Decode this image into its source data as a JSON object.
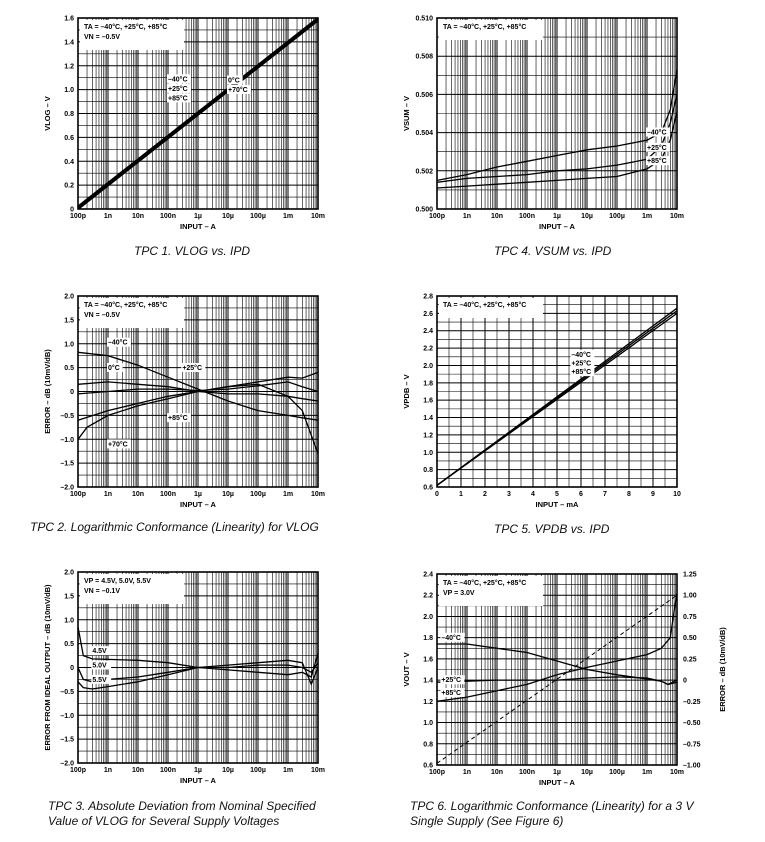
{
  "chart_data": [
    {
      "id": "tpc1",
      "type": "line",
      "caption": "TPC 1.  VLOG vs. IPD",
      "ylabel": "VLOG – V",
      "xlabel": "INPUT – A",
      "xscale": "log",
      "xlim": [
        1e-10,
        0.01
      ],
      "ylim": [
        0,
        1.6
      ],
      "xticks": [
        "100p",
        "1n",
        "10n",
        "100n",
        "1µ",
        "10µ",
        "100µ",
        "1m",
        "10m"
      ],
      "yticks": [
        "0",
        "0.2",
        "0.4",
        "0.6",
        "0.8",
        "1.0",
        "1.2",
        "1.4",
        "1.6"
      ],
      "legend": [
        "TA = –40°C, +25°C, +85°C",
        "VN = –0.5V"
      ],
      "annotations": [
        {
          "text": "–40°C",
          "x": 1e-07,
          "y": 1.07
        },
        {
          "text": "+25°C",
          "x": 1e-07,
          "y": 0.99
        },
        {
          "text": "+85°C",
          "x": 1e-07,
          "y": 0.91
        },
        {
          "text": "0°C",
          "x": 1e-05,
          "y": 1.06
        },
        {
          "text": "+70°C",
          "x": 1e-05,
          "y": 0.98
        }
      ],
      "series": [
        {
          "x": [
            1e-10,
            0.01
          ],
          "y": [
            0.0,
            1.58
          ]
        },
        {
          "x": [
            1e-10,
            0.01
          ],
          "y": [
            0.01,
            1.59
          ]
        },
        {
          "x": [
            1e-10,
            0.01
          ],
          "y": [
            0.02,
            1.6
          ]
        }
      ]
    },
    {
      "id": "tpc2",
      "type": "line",
      "caption": "TPC 2.  Logarithmic Conformance (Linearity) for VLOG",
      "ylabel": "ERROR – dB (10mV/dB)",
      "xlabel": "INPUT – A",
      "xscale": "log",
      "xlim": [
        1e-10,
        0.01
      ],
      "ylim": [
        -2.0,
        2.0
      ],
      "xticks": [
        "100p",
        "1n",
        "10n",
        "100n",
        "1µ",
        "10µ",
        "100µ",
        "1m",
        "10m"
      ],
      "yticks": [
        "–2.0",
        "–1.5",
        "–1.0",
        "–0.5",
        "0",
        "0.5",
        "1.0",
        "1.5",
        "2.0"
      ],
      "legend": [
        "TA = –40°C, +25°C, +85°C",
        "VN = –0.5V"
      ],
      "annotations": [
        {
          "text": "–40°C",
          "x": 1e-09,
          "y": 0.98
        },
        {
          "text": "0°C",
          "x": 1e-09,
          "y": 0.45
        },
        {
          "text": "+25°C",
          "x": 3e-07,
          "y": 0.45
        },
        {
          "text": "+85°C",
          "x": 1e-07,
          "y": -0.6
        },
        {
          "text": "+70°C",
          "x": 1e-09,
          "y": -1.15
        }
      ],
      "series": [
        {
          "x": [
            1e-10,
            1e-09,
            1e-08,
            1e-07,
            1e-06,
            1e-05,
            0.0001,
            0.001,
            0.003,
            0.01
          ],
          "y": [
            0.82,
            0.75,
            0.55,
            0.3,
            0.05,
            -0.2,
            -0.4,
            -0.5,
            -0.55,
            -0.6
          ]
        },
        {
          "x": [
            1e-10,
            1e-09,
            1e-08,
            1e-07,
            1e-06,
            1e-05,
            0.0001,
            0.001,
            0.003,
            0.01
          ],
          "y": [
            0.15,
            0.2,
            0.15,
            0.1,
            0.0,
            -0.05,
            -0.05,
            -0.1,
            -0.15,
            -0.2
          ]
        },
        {
          "x": [
            1e-10,
            1e-09,
            1e-08,
            1e-07,
            1e-06,
            1e-05,
            0.0001,
            0.001,
            0.003,
            0.01
          ],
          "y": [
            -0.05,
            0.0,
            0.05,
            0.05,
            0.02,
            0.05,
            0.12,
            0.2,
            0.1,
            0.0
          ]
        },
        {
          "x": [
            1e-10,
            1e-09,
            1e-08,
            1e-07,
            1e-06,
            1e-05,
            0.0001,
            0.001,
            0.003,
            0.01
          ],
          "y": [
            -0.6,
            -0.4,
            -0.25,
            -0.1,
            0.0,
            0.1,
            0.2,
            0.3,
            0.28,
            0.4
          ]
        },
        {
          "x": [
            1e-10,
            2e-10,
            1e-09,
            1e-08,
            1e-07,
            1e-06,
            1e-05,
            0.0001,
            0.001,
            0.003,
            0.01
          ],
          "y": [
            -1.0,
            -0.75,
            -0.5,
            -0.3,
            -0.15,
            0.0,
            0.1,
            0.15,
            -0.1,
            -0.4,
            -1.3
          ]
        }
      ]
    },
    {
      "id": "tpc3",
      "type": "line",
      "caption": "TPC 3.  Absolute Deviation from Nominal Specified Value of VLOG for Several Supply Voltages",
      "ylabel": "ERROR FROM IDEAL OUTPUT – dB (10mV/dB)",
      "xlabel": "INPUT – A",
      "xscale": "log",
      "xlim": [
        1e-10,
        0.01
      ],
      "ylim": [
        -2.0,
        2.0
      ],
      "xticks": [
        "100p",
        "1n",
        "10n",
        "100n",
        "1µ",
        "10µ",
        "100µ",
        "1m",
        "10m"
      ],
      "yticks": [
        "–2.0",
        "–1.5",
        "–1.0",
        "–0.5",
        "0",
        "0.5",
        "1.0",
        "1.5",
        "2.0"
      ],
      "legend": [
        "VP = 4.5V, 5.0V, 5.5V",
        "VN = –0.1V"
      ],
      "annotations": [
        {
          "text": "4.5V",
          "x": 3e-10,
          "y": 0.3
        },
        {
          "text": "5.0V",
          "x": 3e-10,
          "y": 0.0
        },
        {
          "text": "5.5V",
          "x": 3e-10,
          "y": -0.3
        }
      ],
      "series": [
        {
          "x": [
            1e-10,
            1.5e-10,
            3e-10,
            1e-09,
            1e-08,
            1e-07,
            1e-06,
            1e-05,
            0.0001,
            0.001,
            0.003,
            0.006,
            0.01
          ],
          "y": [
            0.85,
            0.25,
            0.18,
            0.17,
            0.15,
            0.1,
            0.0,
            -0.05,
            -0.1,
            -0.15,
            -0.1,
            -0.2,
            0.3
          ]
        },
        {
          "x": [
            1e-10,
            1.5e-10,
            3e-10,
            1e-09,
            1e-08,
            1e-07,
            1e-06,
            1e-05,
            0.0001,
            0.001,
            0.003,
            0.006,
            0.01
          ],
          "y": [
            0.0,
            -0.25,
            -0.3,
            -0.25,
            -0.2,
            -0.1,
            0.0,
            0.0,
            0.05,
            0.05,
            0.0,
            -0.1,
            0.1
          ]
        },
        {
          "x": [
            1e-10,
            1.5e-10,
            3e-10,
            1e-09,
            1e-08,
            1e-07,
            1e-06,
            1e-05,
            0.0001,
            0.001,
            0.003,
            0.006,
            0.01
          ],
          "y": [
            -0.3,
            -0.42,
            -0.45,
            -0.4,
            -0.3,
            -0.15,
            0.0,
            0.05,
            0.1,
            0.15,
            0.1,
            -0.35,
            0.0
          ]
        }
      ]
    },
    {
      "id": "tpc4",
      "type": "line",
      "caption": "TPC 4.  VSUM vs. IPD",
      "ylabel": "VSUM – V",
      "xlabel": "INPUT – A",
      "xscale": "log",
      "xlim": [
        1e-10,
        0.01
      ],
      "ylim": [
        0.5,
        0.51
      ],
      "xticks": [
        "100p",
        "1n",
        "10n",
        "100n",
        "1µ",
        "10µ",
        "100µ",
        "1m",
        "10m"
      ],
      "yticks": [
        "0.500",
        "0.502",
        "0.504",
        "0.506",
        "0.508",
        "0.510"
      ],
      "legend": [
        "TA = –40°C, +25°C, +85°C"
      ],
      "annotations": [
        {
          "text": "–40°C",
          "x": 0.001,
          "y": 0.5039
        },
        {
          "text": "+25°C",
          "x": 0.001,
          "y": 0.5031
        },
        {
          "text": "+85°C",
          "x": 0.001,
          "y": 0.5024
        }
      ],
      "series": [
        {
          "x": [
            1e-10,
            1e-09,
            1e-08,
            1e-07,
            1e-06,
            1e-05,
            0.0001,
            0.001,
            0.003,
            0.006,
            0.01
          ],
          "y": [
            0.5015,
            0.5018,
            0.5022,
            0.5025,
            0.5028,
            0.5031,
            0.5033,
            0.5036,
            0.504,
            0.5052,
            0.5073
          ]
        },
        {
          "x": [
            1e-10,
            1e-09,
            1e-08,
            1e-07,
            1e-06,
            1e-05,
            0.0001,
            0.001,
            0.003,
            0.006,
            0.01
          ],
          "y": [
            0.5014,
            0.5016,
            0.5017,
            0.5018,
            0.502,
            0.5021,
            0.5023,
            0.5026,
            0.5033,
            0.5045,
            0.506
          ]
        },
        {
          "x": [
            1e-10,
            1e-09,
            1e-08,
            1e-07,
            1e-06,
            1e-05,
            0.0001,
            0.001,
            0.003,
            0.006,
            0.01
          ],
          "y": [
            0.5011,
            0.5012,
            0.5013,
            0.5014,
            0.5015,
            0.5016,
            0.5017,
            0.5021,
            0.5026,
            0.5036,
            0.5051
          ]
        }
      ]
    },
    {
      "id": "tpc5",
      "type": "line",
      "caption": "TPC 5.  VPDB vs. IPD",
      "ylabel": "VPDB – V",
      "xlabel": "INPUT – mA",
      "xscale": "linear",
      "xlim": [
        0,
        10
      ],
      "ylim": [
        0.6,
        2.8
      ],
      "xticks": [
        "0",
        "1",
        "2",
        "3",
        "4",
        "5",
        "6",
        "7",
        "8",
        "9",
        "10"
      ],
      "yticks": [
        "0.6",
        "0.8",
        "1.0",
        "1.2",
        "1.4",
        "1.6",
        "1.8",
        "2.0",
        "2.2",
        "2.4",
        "2.6",
        "2.8"
      ],
      "legend": [
        "TA = –40°C, +25°C, +85°C"
      ],
      "annotations": [
        {
          "text": "–40°C",
          "x": 5.6,
          "y": 2.1
        },
        {
          "text": "+25°C",
          "x": 5.6,
          "y": 2.0
        },
        {
          "text": "+85°C",
          "x": 5.6,
          "y": 1.9
        }
      ],
      "series": [
        {
          "x": [
            0,
            10
          ],
          "y": [
            0.62,
            2.66
          ]
        },
        {
          "x": [
            0,
            10
          ],
          "y": [
            0.62,
            2.63
          ]
        },
        {
          "x": [
            0,
            10
          ],
          "y": [
            0.62,
            2.6
          ]
        }
      ]
    },
    {
      "id": "tpc6",
      "type": "line",
      "caption": "TPC 6.  Logarithmic Conformance (Linearity) for a 3 V Single Supply (See Figure 6)",
      "ylabel": "VOUT – V",
      "y2label": "ERROR – dB (10mV/dB)",
      "xlabel": "INPUT – A",
      "xscale": "log",
      "xlim": [
        1e-10,
        0.01
      ],
      "ylim": [
        0.6,
        2.4
      ],
      "y2lim": [
        -1.0,
        1.25
      ],
      "xticks": [
        "100p",
        "1n",
        "10n",
        "100n",
        "1µ",
        "10µ",
        "100µ",
        "1m",
        "10m"
      ],
      "yticks": [
        "0.6",
        "0.8",
        "1.0",
        "1.2",
        "1.4",
        "1.6",
        "1.8",
        "2.0",
        "2.2",
        "2.4"
      ],
      "y2ticks": [
        "–1.00",
        "–0.75",
        "–0.50",
        "–0.25",
        "0",
        "0.25",
        "0.50",
        "0.75",
        "1.00",
        "1.25"
      ],
      "legend": [
        "TA = –40°C, +25°C, +85°C",
        "VP = 3.0V"
      ],
      "annotations": [
        {
          "text": "–40°C",
          "x": 1.4e-10,
          "y": 1.78
        },
        {
          "text": "+25°C",
          "x": 1.4e-10,
          "y": 1.38
        },
        {
          "text": "+85°C",
          "x": 1.4e-10,
          "y": 1.26
        }
      ],
      "series": [
        {
          "x": [
            1e-10,
            1e-09,
            1e-08,
            1e-07,
            1e-06,
            1e-05,
            0.0001,
            0.001,
            0.003,
            0.005,
            0.01
          ],
          "y": [
            1.74,
            1.74,
            1.7,
            1.66,
            1.58,
            1.5,
            1.45,
            1.41,
            1.39,
            1.36,
            1.4
          ],
          "axis": "left"
        },
        {
          "x": [
            1e-10,
            1e-09,
            1e-08,
            1e-07,
            1e-06,
            1e-05,
            0.0001,
            0.001,
            0.003,
            0.005,
            0.01
          ],
          "y": [
            1.38,
            1.39,
            1.4,
            1.4,
            1.4,
            1.42,
            1.43,
            1.42,
            1.39,
            1.36,
            1.38
          ],
          "axis": "left"
        },
        {
          "x": [
            1e-10,
            1e-09,
            1e-08,
            1e-07,
            1e-06,
            1e-05,
            0.0001,
            0.001,
            0.003,
            0.006,
            0.008,
            0.01
          ],
          "y": [
            1.2,
            1.24,
            1.3,
            1.36,
            1.45,
            1.52,
            1.58,
            1.64,
            1.7,
            1.8,
            2.05,
            2.22
          ],
          "axis": "left"
        },
        {
          "x": [
            1e-10,
            0.01
          ],
          "y": [
            -0.98,
            1.0
          ],
          "axis": "right",
          "style": "dashed"
        }
      ]
    }
  ]
}
